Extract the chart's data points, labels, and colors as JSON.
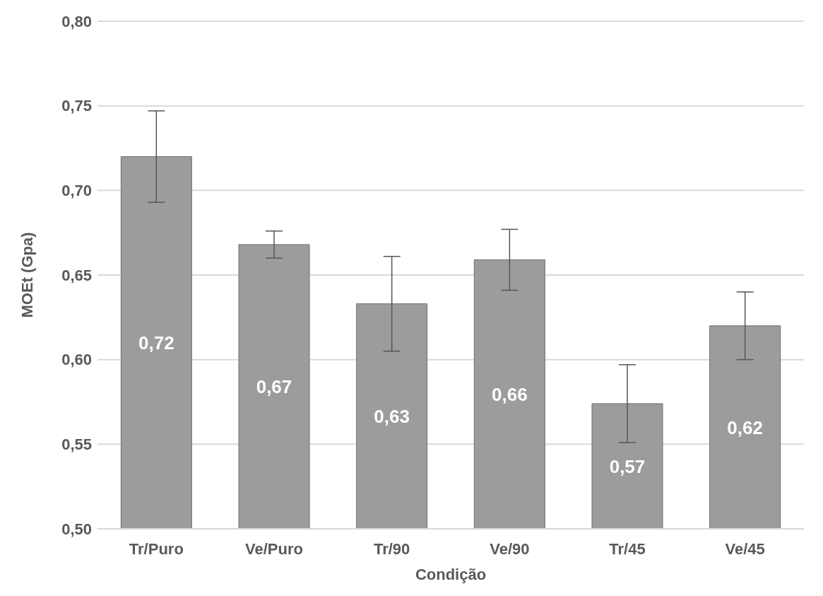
{
  "chart_data": {
    "type": "bar",
    "xlabel": "Condição",
    "ylabel": "MOEt (Gpa)",
    "categories": [
      "Tr/Puro",
      "Ve/Puro",
      "Tr/90",
      "Ve/90",
      "Tr/45",
      "Ve/45"
    ],
    "values": [
      0.72,
      0.668,
      0.633,
      0.659,
      0.574,
      0.62
    ],
    "errors": [
      0.027,
      0.008,
      0.028,
      0.018,
      0.023,
      0.02
    ],
    "value_labels": [
      "0,72",
      "0,67",
      "0,63",
      "0,66",
      "0,57",
      "0,62"
    ],
    "color": "#9c9c9c",
    "ylim": [
      0.5,
      0.8
    ],
    "yticks": [
      {
        "value": 0.5,
        "label": "0,50"
      },
      {
        "value": 0.55,
        "label": "0,55"
      },
      {
        "value": 0.6,
        "label": "0,60"
      },
      {
        "value": 0.65,
        "label": "0,65"
      },
      {
        "value": 0.7,
        "label": "0,70"
      },
      {
        "value": 0.75,
        "label": "0,75"
      },
      {
        "value": 0.8,
        "label": "0,80"
      }
    ],
    "grid": "y",
    "legend": false
  }
}
